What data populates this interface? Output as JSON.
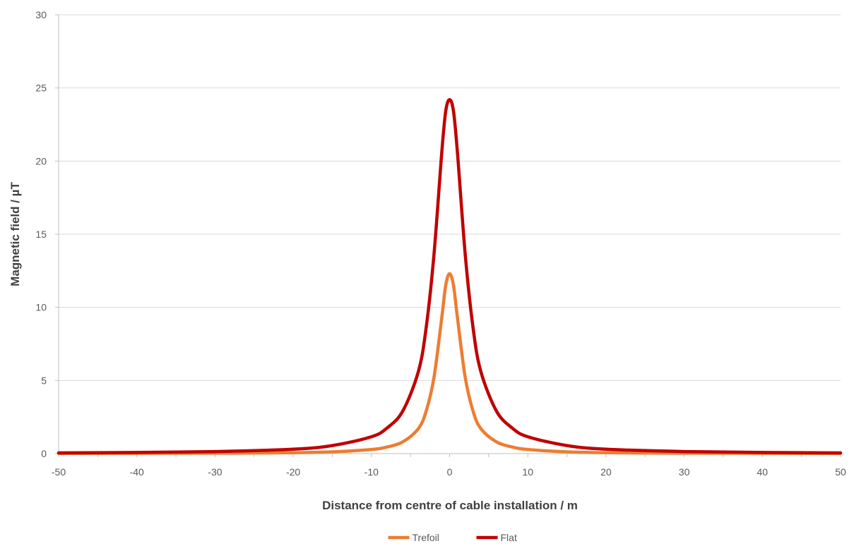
{
  "chart_data": {
    "type": "line",
    "title": "",
    "xlabel": "Distance from centre of cable installation / m",
    "ylabel": "Magnetic field / µT",
    "xlim": [
      -50,
      50
    ],
    "ylim": [
      0,
      30
    ],
    "x_ticks": [
      -50,
      -40,
      -30,
      -20,
      -10,
      0,
      10,
      20,
      30,
      40,
      50
    ],
    "y_ticks": [
      0,
      5,
      10,
      15,
      20,
      25,
      30
    ],
    "grid": "horizontal",
    "legend_position": "bottom",
    "x": [
      -50,
      -40,
      -30,
      -20,
      -15,
      -10,
      -8,
      -6,
      -4,
      -3,
      -2,
      -1,
      -0.5,
      0,
      0.5,
      1,
      2,
      3,
      4,
      6,
      8,
      10,
      15,
      20,
      30,
      40,
      50
    ],
    "series": [
      {
        "name": "Trefoil",
        "color": "#ED7D31",
        "values": [
          0.01,
          0.02,
          0.03,
          0.06,
          0.12,
          0.28,
          0.45,
          0.8,
          1.7,
          2.9,
          5.2,
          9.3,
          11.5,
          12.3,
          11.5,
          9.3,
          5.2,
          2.9,
          1.7,
          0.8,
          0.45,
          0.28,
          0.12,
          0.06,
          0.03,
          0.02,
          0.01
        ]
      },
      {
        "name": "Flat",
        "color": "#C00000",
        "values": [
          0.05,
          0.08,
          0.14,
          0.3,
          0.55,
          1.15,
          1.75,
          2.9,
          5.6,
          8.6,
          13.6,
          20.6,
          23.4,
          24.2,
          23.4,
          20.6,
          13.6,
          8.6,
          5.6,
          2.9,
          1.75,
          1.15,
          0.55,
          0.3,
          0.14,
          0.08,
          0.05
        ]
      }
    ]
  }
}
